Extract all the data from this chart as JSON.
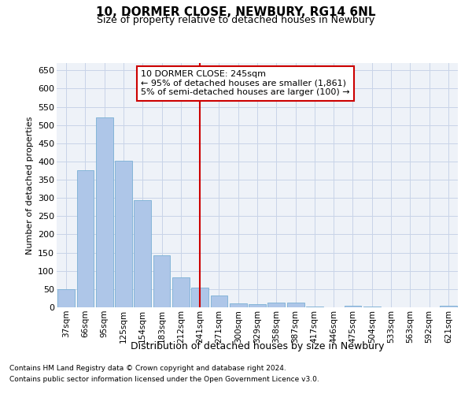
{
  "title1": "10, DORMER CLOSE, NEWBURY, RG14 6NL",
  "title2": "Size of property relative to detached houses in Newbury",
  "xlabel": "Distribution of detached houses by size in Newbury",
  "ylabel": "Number of detached properties",
  "categories": [
    "37sqm",
    "66sqm",
    "95sqm",
    "125sqm",
    "154sqm",
    "183sqm",
    "212sqm",
    "241sqm",
    "271sqm",
    "300sqm",
    "329sqm",
    "358sqm",
    "387sqm",
    "417sqm",
    "446sqm",
    "475sqm",
    "504sqm",
    "533sqm",
    "563sqm",
    "592sqm",
    "621sqm"
  ],
  "values": [
    50,
    375,
    520,
    403,
    293,
    142,
    82,
    55,
    32,
    10,
    8,
    13,
    12,
    3,
    0,
    4,
    3,
    0,
    0,
    0,
    5
  ],
  "bar_color": "#aec6e8",
  "bar_edge_color": "#7aafd4",
  "grid_color": "#c8d4e8",
  "bg_color": "#eef2f8",
  "vline_x": 7,
  "vline_color": "#cc0000",
  "annotation_box_color": "#cc0000",
  "annotation_text_line1": "10 DORMER CLOSE: 245sqm",
  "annotation_text_line2": "← 95% of detached houses are smaller (1,861)",
  "annotation_text_line3": "5% of semi-detached houses are larger (100) →",
  "footer1": "Contains HM Land Registry data © Crown copyright and database right 2024.",
  "footer2": "Contains public sector information licensed under the Open Government Licence v3.0.",
  "ylim": [
    0,
    670
  ],
  "yticks": [
    0,
    50,
    100,
    150,
    200,
    250,
    300,
    350,
    400,
    450,
    500,
    550,
    600,
    650
  ]
}
